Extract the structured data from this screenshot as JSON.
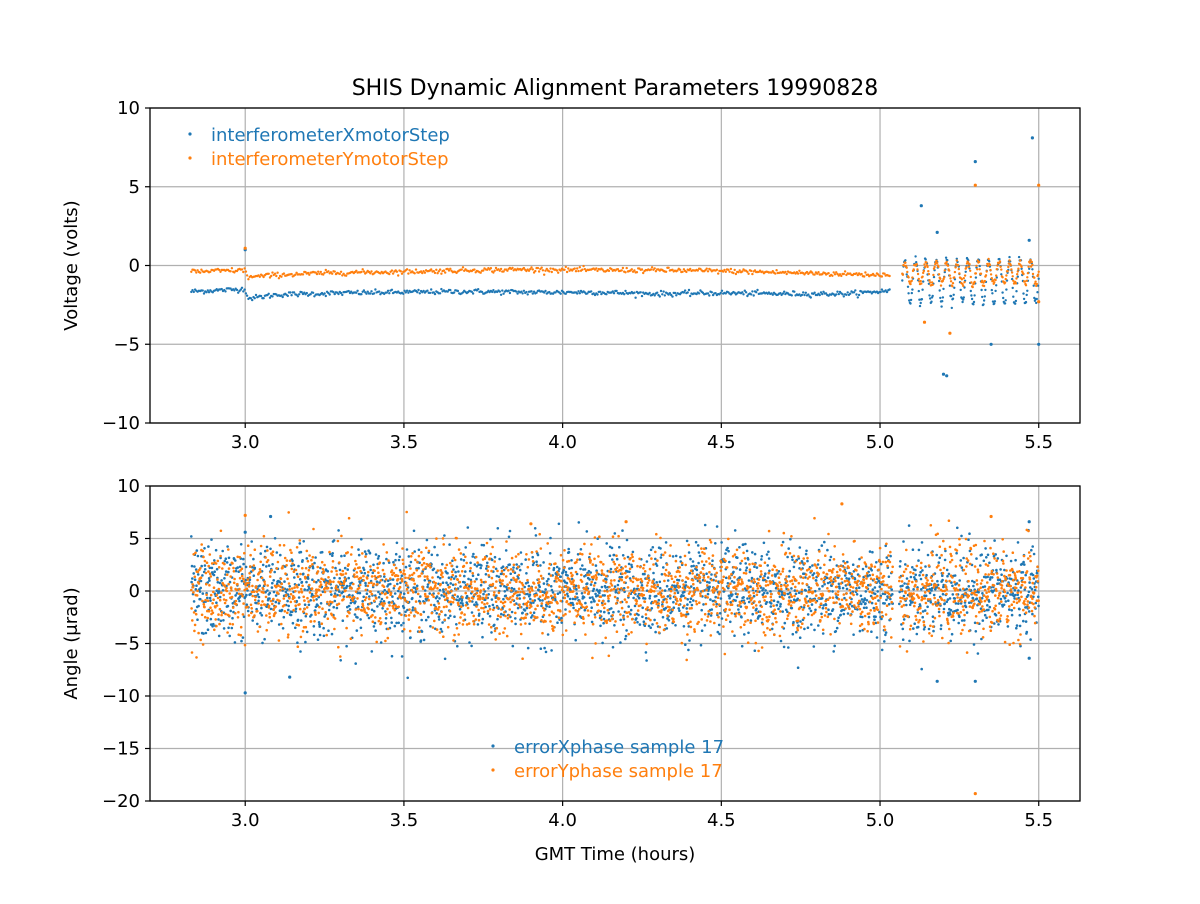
{
  "title": "SHIS Dynamic Alignment Parameters 19990828",
  "colors": {
    "series_x": "#1f77b4",
    "series_y": "#ff7f0e",
    "grid": "#b0b0b0"
  },
  "chart_data": [
    {
      "type": "scatter",
      "title": "SHIS Dynamic Alignment Parameters 19990828",
      "xlabel": "",
      "ylabel": "Voltage (volts)",
      "xlim": [
        2.7,
        5.63
      ],
      "ylim": [
        -10,
        10
      ],
      "xticks": [
        3.0,
        3.5,
        4.0,
        4.5,
        5.0,
        5.5
      ],
      "xtick_labels": [
        "3.0",
        "3.5",
        "4.0",
        "4.5",
        "5.0",
        "5.5"
      ],
      "yticks": [
        10,
        5,
        0,
        -5,
        -10
      ],
      "ytick_labels": [
        "10",
        "5",
        "0",
        "−5",
        "−10"
      ],
      "grid": true,
      "legend_position": "top-left",
      "series": [
        {
          "name": "interferometerXmotorStep",
          "color": "#1f77b4",
          "trend": [
            [
              2.83,
              -1.65
            ],
            [
              3.0,
              -1.5
            ],
            [
              3.01,
              -2.1
            ],
            [
              3.1,
              -1.85
            ],
            [
              3.3,
              -1.75
            ],
            [
              3.5,
              -1.7
            ],
            [
              3.7,
              -1.65
            ],
            [
              3.9,
              -1.7
            ],
            [
              4.1,
              -1.7
            ],
            [
              4.3,
              -1.8
            ],
            [
              4.5,
              -1.75
            ],
            [
              4.7,
              -1.8
            ],
            [
              4.9,
              -1.8
            ],
            [
              5.03,
              -1.6
            ]
          ],
          "oscillating_segment": {
            "x_start": 5.07,
            "x_end": 5.5,
            "center": -1.0,
            "amplitude": 1.4
          },
          "outliers": [
            [
              5.48,
              8.1
            ],
            [
              5.3,
              6.6
            ],
            [
              5.13,
              3.8
            ],
            [
              5.18,
              2.1
            ],
            [
              5.2,
              -6.9
            ],
            [
              5.21,
              -7.0
            ],
            [
              5.35,
              -5.0
            ],
            [
              5.5,
              -5.0
            ],
            [
              5.47,
              1.6
            ],
            [
              3.0,
              1.0
            ]
          ]
        },
        {
          "name": "interferometerYmotorStep",
          "color": "#ff7f0e",
          "trend": [
            [
              2.83,
              -0.4
            ],
            [
              3.0,
              -0.3
            ],
            [
              3.01,
              -0.75
            ],
            [
              3.1,
              -0.6
            ],
            [
              3.3,
              -0.45
            ],
            [
              3.5,
              -0.4
            ],
            [
              3.7,
              -0.3
            ],
            [
              3.9,
              -0.25
            ],
            [
              4.1,
              -0.3
            ],
            [
              4.3,
              -0.3
            ],
            [
              4.5,
              -0.35
            ],
            [
              4.7,
              -0.45
            ],
            [
              4.9,
              -0.55
            ],
            [
              5.03,
              -0.6
            ]
          ],
          "oscillating_segment": {
            "x_start": 5.07,
            "x_end": 5.5,
            "center": -0.5,
            "amplitude": 0.7
          },
          "outliers": [
            [
              5.3,
              5.1
            ],
            [
              5.5,
              5.1
            ],
            [
              5.14,
              -3.6
            ],
            [
              5.22,
              -4.3
            ],
            [
              5.5,
              -2.3
            ],
            [
              3.0,
              1.1
            ]
          ]
        }
      ]
    },
    {
      "type": "scatter",
      "title": "",
      "xlabel": "GMT Time (hours)",
      "ylabel": "Angle (μrad)",
      "xlim": [
        2.7,
        5.63
      ],
      "ylim": [
        -20,
        10
      ],
      "xticks": [
        3.0,
        3.5,
        4.0,
        4.5,
        5.0,
        5.5
      ],
      "xtick_labels": [
        "3.0",
        "3.5",
        "4.0",
        "4.5",
        "5.0",
        "5.5"
      ],
      "yticks": [
        10,
        5,
        0,
        -5,
        -10,
        -15,
        -20
      ],
      "ytick_labels": [
        "10",
        "5",
        "0",
        "−5",
        "−10",
        "−15",
        "−20"
      ],
      "grid": true,
      "legend_position": "lower-center",
      "series": [
        {
          "name": "errorXphase sample 17",
          "color": "#1f77b4",
          "x_range": [
            2.83,
            5.5
          ],
          "center": 0,
          "spread": 2.2,
          "gaps": [
            [
              5.04,
              5.06
            ]
          ],
          "outliers": [
            [
              3.0,
              -9.7
            ],
            [
              3.08,
              7.1
            ],
            [
              3.14,
              -8.2
            ],
            [
              5.18,
              -8.6
            ],
            [
              5.3,
              -8.6
            ],
            [
              5.47,
              6.6
            ],
            [
              5.47,
              -6.4
            ],
            [
              3.0,
              5.6
            ]
          ]
        },
        {
          "name": "errorYphase sample 17",
          "color": "#ff7f0e",
          "x_range": [
            2.83,
            5.5
          ],
          "center": 0,
          "spread": 2.1,
          "gaps": [
            [
              5.04,
              5.06
            ]
          ],
          "outliers": [
            [
              4.88,
              8.3
            ],
            [
              5.3,
              -19.3
            ],
            [
              3.0,
              7.2
            ],
            [
              4.2,
              6.6
            ],
            [
              5.35,
              7.1
            ],
            [
              3.9,
              6.4
            ]
          ]
        }
      ]
    }
  ]
}
